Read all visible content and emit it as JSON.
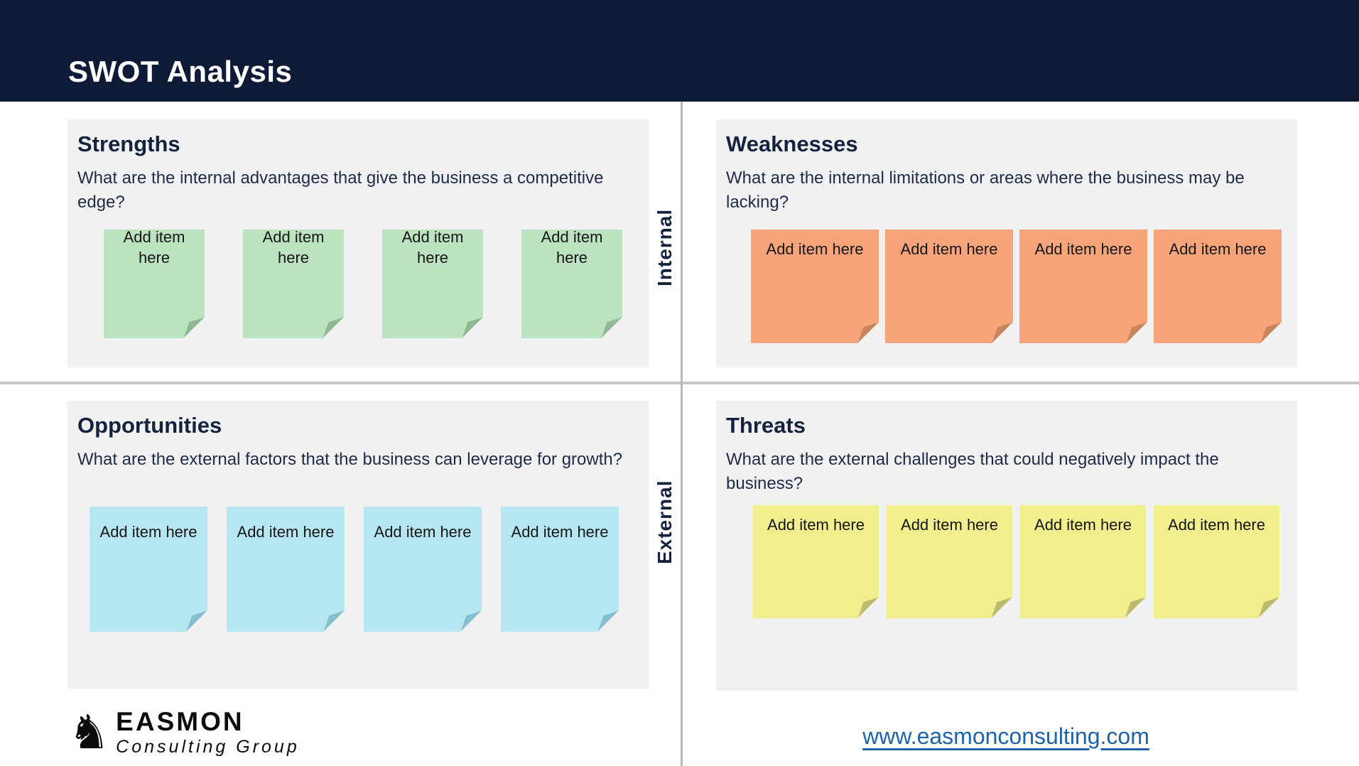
{
  "header": {
    "title": "SWOT Analysis",
    "bg_color": "#0d1b36",
    "text_color": "#ffffff"
  },
  "axis": {
    "internal_label": "Internal",
    "external_label": "External"
  },
  "quadrants": [
    {
      "key": "strengths",
      "title": "Strengths",
      "question": "What are the internal advantages that give the business a competitive edge?",
      "note_color": "#bce3c0",
      "fold_color": "#8fb893",
      "notes": [
        "Add item here",
        "Add item here",
        "Add item here",
        "Add item here"
      ]
    },
    {
      "key": "weaknesses",
      "title": "Weaknesses",
      "question": "What are the internal limitations or areas where the business may be lacking?",
      "note_color": "#f8a47b",
      "fold_color": "#c9855e",
      "notes": [
        "Add item here",
        "Add item here",
        "Add item here",
        "Add item here"
      ]
    },
    {
      "key": "opportunities",
      "title": "Opportunities",
      "question": "What are the external factors that the business can leverage for growth?",
      "note_color": "#b6e6f2",
      "fold_color": "#84bed0",
      "notes": [
        "Add item here",
        "Add item here",
        "Add item here",
        "Add item here"
      ]
    },
    {
      "key": "threats",
      "title": "Threats",
      "question": "What are the external challenges that could negatively impact the business?",
      "note_color": "#f0ee8d",
      "fold_color": "#bfba6e",
      "notes": [
        "Add item here",
        "Add item here",
        "Add item here",
        "Add item here"
      ]
    }
  ],
  "footer": {
    "logo": {
      "icon": "chess-knight-icon",
      "name": "EASMON",
      "tagline": "Consulting Group"
    },
    "website": "www.easmonconsulting.com",
    "link_color": "#1e63aa"
  }
}
